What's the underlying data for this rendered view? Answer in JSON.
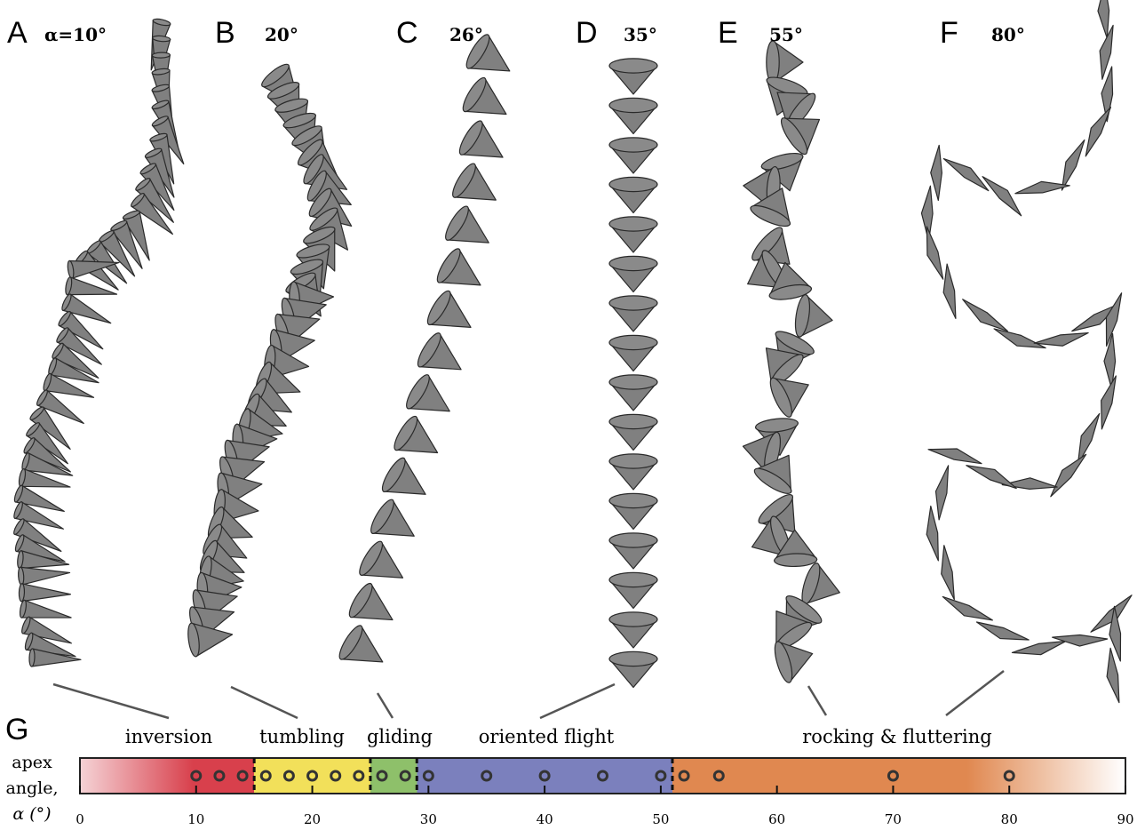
{
  "panels": [
    {
      "label": "A",
      "angle": "α=10°"
    },
    {
      "label": "B",
      "angle": "20°"
    },
    {
      "label": "C",
      "angle": "26°"
    },
    {
      "label": "D",
      "angle": "35°"
    },
    {
      "label": "E",
      "angle": "55°"
    },
    {
      "label": "F",
      "angle": "80°"
    }
  ],
  "chart_data": {
    "type": "strip",
    "label": "G",
    "ylabel": [
      "apex",
      "angle,",
      "α (°)"
    ],
    "regimes": [
      {
        "name": "inversion",
        "color": "#d8404c"
      },
      {
        "name": "tumbling",
        "color": "#f2e05a"
      },
      {
        "name": "gliding",
        "color": "#8ec06a"
      },
      {
        "name": "oriented flight",
        "color": "#7b80bd"
      },
      {
        "name": "rocking & fluttering",
        "color": "#e08850"
      }
    ],
    "boundaries": [
      15,
      25,
      29,
      51
    ],
    "values": [
      10,
      12,
      14,
      16,
      18,
      20,
      22,
      24,
      26,
      28,
      30,
      35,
      40,
      45,
      50,
      52,
      55,
      70,
      80
    ],
    "xlim": [
      0,
      90
    ],
    "xticks": [
      0,
      10,
      20,
      30,
      40,
      50,
      60,
      70,
      80,
      90
    ]
  }
}
